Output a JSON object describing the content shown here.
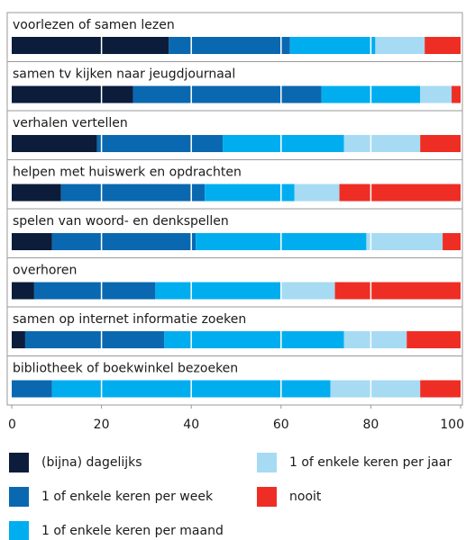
{
  "chart_data": {
    "type": "stacked_barh",
    "categories": [
      "voorlezen of samen lezen",
      "samen tv kijken naar jeugdjournaal",
      "verhalen vertellen",
      "helpen met huiswerk en opdrachten",
      "spelen van woord- en denkspellen",
      "overhoren",
      "samen op internet informatie zoeken",
      "bibliotheek of boekwinkel bezoeken"
    ],
    "series": [
      {
        "name": "(bijna) dagelijks",
        "color": "#0b1d3a",
        "values": [
          35,
          27,
          19,
          11,
          9,
          5,
          3,
          0
        ]
      },
      {
        "name": "1 of enkele keren per week",
        "color": "#0a68b0",
        "values": [
          27,
          42,
          28,
          32,
          32,
          27,
          31,
          9
        ]
      },
      {
        "name": "1 of enkele keren per maand",
        "color": "#00aeef",
        "values": [
          19,
          22,
          27,
          20,
          38,
          28,
          40,
          62
        ]
      },
      {
        "name": "1 of enkele keren per jaar",
        "color": "#a6dbf3",
        "values": [
          11,
          7,
          17,
          10,
          17,
          12,
          14,
          20
        ]
      },
      {
        "name": "nooit",
        "color": "#ee2e24",
        "values": [
          8,
          2,
          9,
          27,
          4,
          28,
          12,
          9
        ]
      }
    ],
    "xlim": [
      0,
      100
    ],
    "xticks": [
      0,
      20,
      40,
      60,
      80,
      100
    ],
    "grid": true
  }
}
